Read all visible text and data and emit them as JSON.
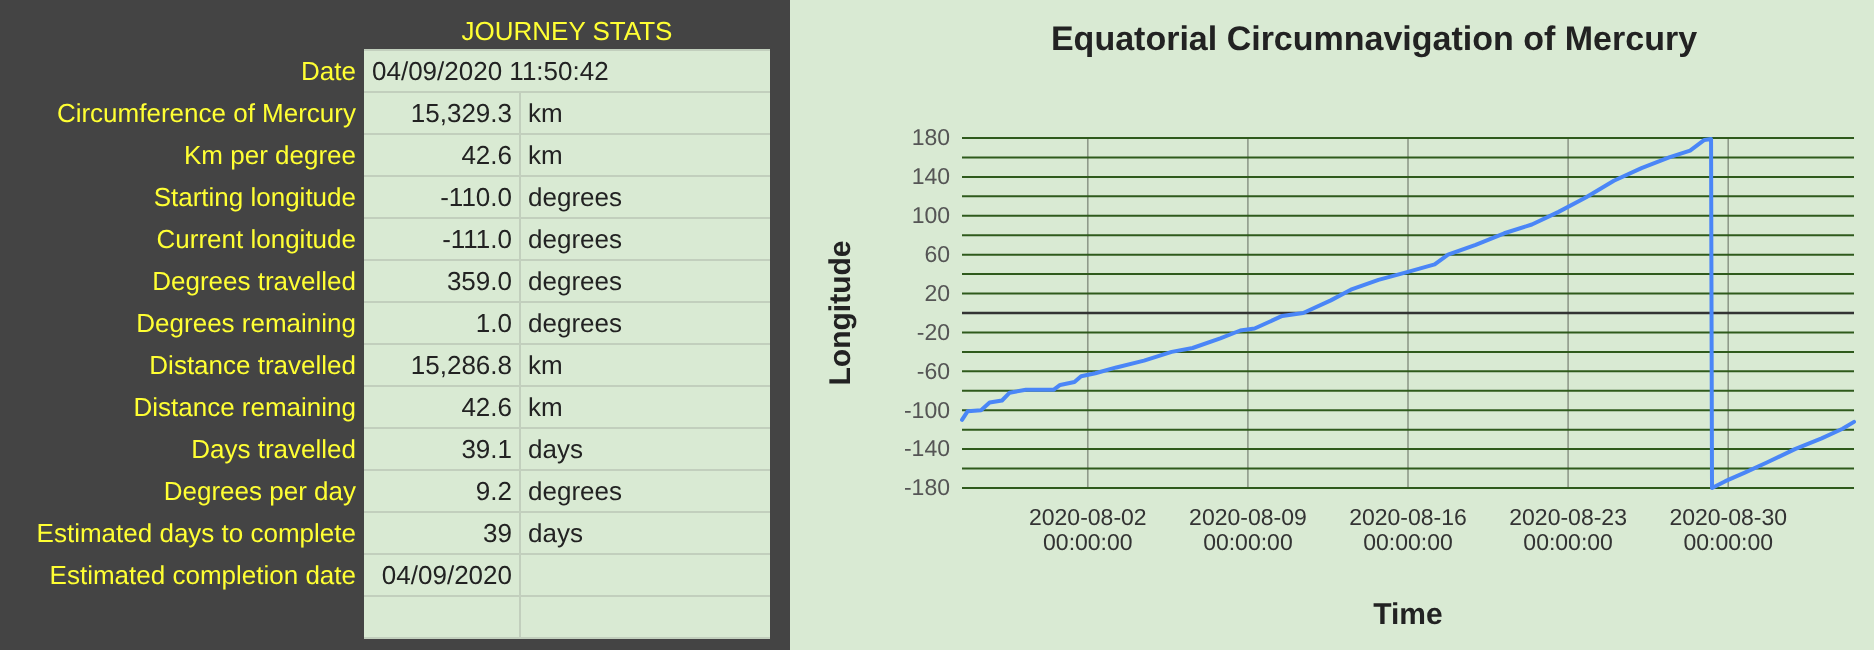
{
  "chart_data": [
    {
      "type": "other",
      "title": "JOURNEY STATS",
      "categories": [
        "Date",
        "Circumference of Mercury",
        "Km per degree",
        "Starting longitude",
        "Current longitude",
        "Degrees travelled",
        "Degrees remaining",
        "Distance travelled",
        "Distance remaining",
        "Days travelled",
        "Degrees per day",
        "Estimated days to complete",
        "Estimated completion date"
      ],
      "cell_labels": [
        [
          "04/09/2020 11:50:42",
          null
        ],
        [
          "15,329.3",
          "km"
        ],
        [
          "42.6",
          "km"
        ],
        [
          "-110.0",
          "degrees"
        ],
        [
          "-111.0",
          "degrees"
        ],
        [
          "359.0",
          "degrees"
        ],
        [
          "1.0",
          "degrees"
        ],
        [
          "15,286.8",
          "km"
        ],
        [
          "42.6",
          "km"
        ],
        [
          "39.1",
          "days"
        ],
        [
          "9.2",
          "degrees"
        ],
        [
          "39",
          "days"
        ],
        [
          "04/09/2020",
          null
        ]
      ]
    },
    {
      "type": "line",
      "title": "Equatorial Circumnavigation of Mercury",
      "xlabel": "Time",
      "ylabel": "Longitude",
      "x": [
        "2020-07-27T12:00",
        "2020-07-27T18:00",
        "2020-07-28T08:00",
        "2020-07-28T17:00",
        "2020-07-29T06:00",
        "2020-07-29T14:00",
        "2020-07-30T07:00",
        "2020-07-31T12:00",
        "2020-07-31T19:00",
        "2020-08-01T10:00",
        "2020-08-01T17:00",
        "2020-08-02T08:00",
        "2020-08-03T06:00",
        "2020-08-04T11:00",
        "2020-08-05T16:00",
        "2020-08-06T14:00",
        "2020-08-07T19:00",
        "2020-08-08T16:00",
        "2020-08-09T07:00",
        "2020-08-10T12:00",
        "2020-08-11T10:00",
        "2020-08-12T15:00",
        "2020-08-13T12:00",
        "2020-08-14T17:00",
        "2020-08-15T23:00",
        "2020-08-17T04:00",
        "2020-08-17T18:00",
        "2020-08-18T23:00",
        "2020-08-20T05:00",
        "2020-08-21T10:00",
        "2020-08-22T14:00",
        "2020-08-23T19:00",
        "2020-08-25T00:00",
        "2020-08-26T05:00",
        "2020-08-27T10:00",
        "2020-08-28T08:00",
        "2020-08-28T23:00",
        "2020-08-29T06:00",
        "2020-08-29T07:00",
        "2020-08-29T21:00",
        "2020-08-30T18:00",
        "2020-08-31T16:00",
        "2020-09-01T22:00",
        "2020-09-03T02:00",
        "2020-09-04T00:00",
        "2020-09-04T12:00"
      ],
      "series": [
        {
          "color": "#4a86f7",
          "values": [
            -110,
            -101,
            -100,
            -92,
            -90,
            -82,
            -79,
            -79,
            -74,
            -71,
            -65,
            -62,
            -56,
            -49,
            -40,
            -36,
            -26,
            -18,
            -16,
            -3,
            0,
            13,
            24,
            34,
            42,
            50,
            60,
            70,
            82,
            91,
            104,
            119,
            136,
            149,
            160,
            167,
            178,
            179,
            -180,
            -173,
            -164,
            -154,
            -140,
            -129,
            -119,
            -112
          ]
        }
      ],
      "xlim": [
        "2020-07-27T12:00",
        "2020-09-04T12:00"
      ],
      "xticks": [
        {
          "value": "2020-08-02",
          "label": "2020-08-02 00:00:00"
        },
        {
          "value": "2020-08-09",
          "label": "2020-08-09 00:00:00"
        },
        {
          "value": "2020-08-16",
          "label": "2020-08-16 00:00:00"
        },
        {
          "value": "2020-08-23",
          "label": "2020-08-23 00:00:00"
        },
        {
          "value": "2020-08-30",
          "label": "2020-08-30 00:00:00"
        }
      ],
      "ylim": [
        -180,
        180
      ],
      "yticks": [
        -180,
        {
          "value": -160,
          "label": null
        },
        -140,
        {
          "value": -120,
          "label": null
        },
        -100,
        {
          "value": -80,
          "label": null
        },
        -60,
        {
          "value": -40,
          "label": null
        },
        -20,
        {
          "value": 0,
          "label": null
        },
        20,
        {
          "value": 40,
          "label": null
        },
        60,
        {
          "value": 80,
          "label": null
        },
        100,
        {
          "value": 120,
          "label": null
        },
        140,
        {
          "value": 160,
          "label": null
        },
        180
      ],
      "ref_lines": [
        {
          "axis": "y",
          "value": 0,
          "color": "#333333"
        }
      ],
      "grid": true,
      "marker": "none",
      "line_style": "solid"
    }
  ]
}
